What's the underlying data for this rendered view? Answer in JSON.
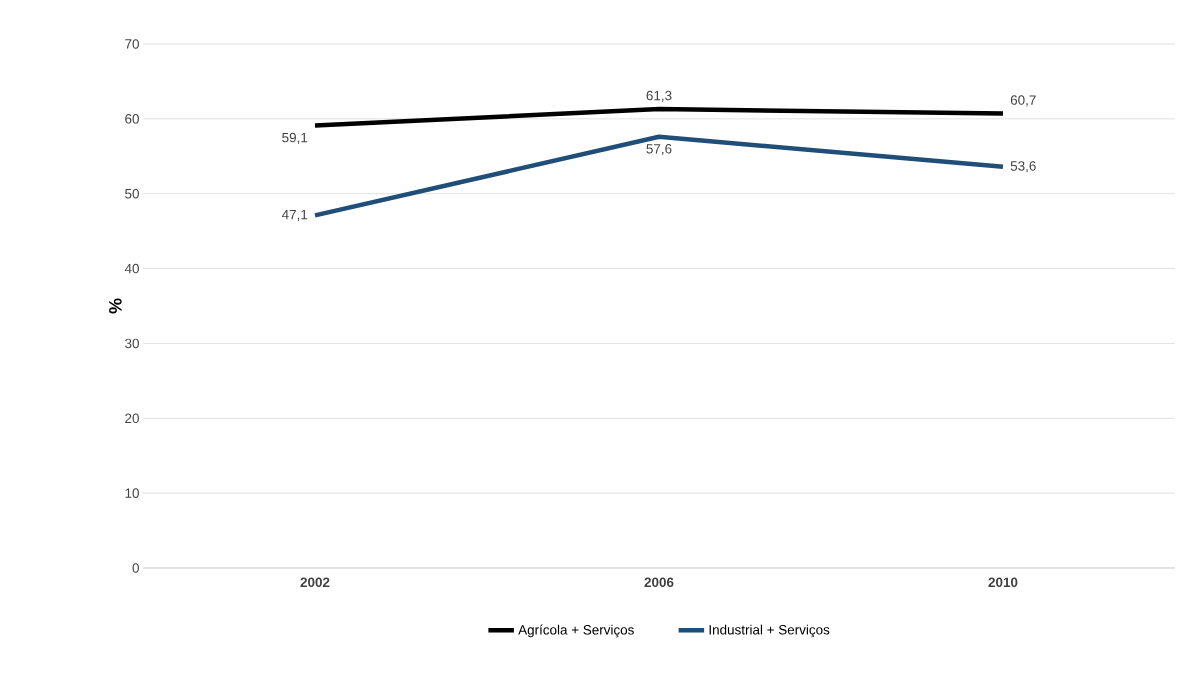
{
  "chart_data": {
    "type": "line",
    "ylabel": "%",
    "categories": [
      "2002",
      "2006",
      "2010"
    ],
    "series": [
      {
        "name": "Agrícola + Serviços",
        "color": "#000000",
        "values": [
          59.1,
          61.3,
          60.7
        ],
        "value_labels": [
          "59,1",
          "61,3",
          "60,7"
        ]
      },
      {
        "name": "Industrial + Serviços",
        "color": "#1f4e79",
        "values": [
          47.1,
          57.6,
          53.6
        ],
        "value_labels": [
          "47,1",
          "57,6",
          "53,6"
        ]
      }
    ],
    "ylim": [
      0,
      70
    ],
    "yticks": [
      0,
      10,
      20,
      30,
      40,
      50,
      60,
      70
    ],
    "grid": "y",
    "legend": "bottom",
    "marker": "none",
    "line_style": "solid"
  }
}
